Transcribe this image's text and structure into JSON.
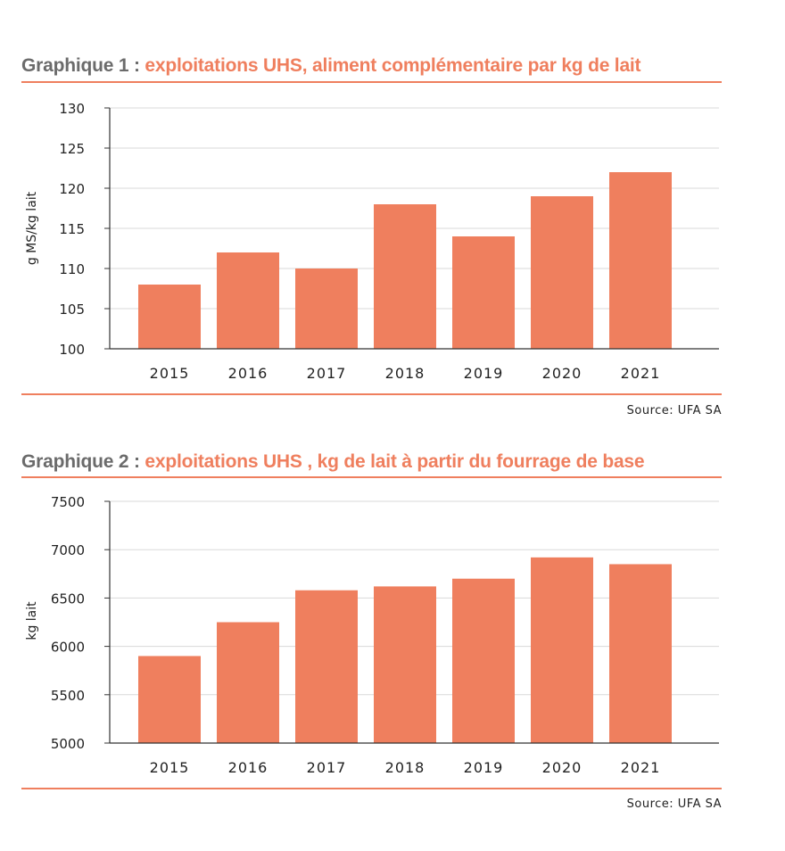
{
  "colors": {
    "bar": "#ef7f5e",
    "accent": "#ef7f5e",
    "prefix": "#6b6b6b",
    "grid": "#d9d9d9",
    "axis": "#333333"
  },
  "chart_data": [
    {
      "type": "bar",
      "title_prefix": "Graphique 1 :",
      "title": "exploitations UHS, aliment complémentaire par kg de lait",
      "xlabel": "",
      "ylabel": "g MS/kg lait",
      "categories": [
        "2015",
        "2016",
        "2017",
        "2018",
        "2019",
        "2020",
        "2021"
      ],
      "values": [
        108,
        112,
        110,
        118,
        114,
        119,
        122
      ],
      "ylim": [
        100,
        130
      ],
      "yticks": [
        100,
        105,
        110,
        115,
        120,
        125,
        130
      ],
      "grid": true,
      "source": "Source: UFA SA"
    },
    {
      "type": "bar",
      "title_prefix": "Graphique 2 :",
      "title": "exploitations UHS , kg de lait à partir du fourrage de base",
      "xlabel": "",
      "ylabel": "kg lait",
      "categories": [
        "2015",
        "2016",
        "2017",
        "2018",
        "2019",
        "2020",
        "2021"
      ],
      "values": [
        5900,
        6250,
        6580,
        6620,
        6700,
        6920,
        6850
      ],
      "ylim": [
        5000,
        7500
      ],
      "yticks": [
        5000,
        5500,
        6000,
        6500,
        7000,
        7500
      ],
      "grid": true,
      "source": "Source: UFA SA"
    }
  ]
}
